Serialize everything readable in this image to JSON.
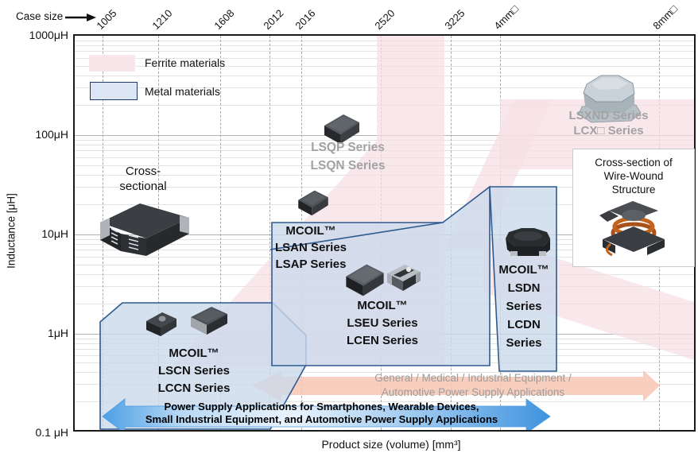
{
  "axes": {
    "case_size_label": "Case size",
    "case_sizes": [
      "1005",
      "1210",
      "1608",
      "2012",
      "2016",
      "2520",
      "3225",
      "4mm□",
      "8mm□"
    ],
    "y_label": "Inductance [μH]",
    "y_ticks": [
      "1000μH",
      "100μH",
      "10μH",
      "1μH",
      "0.1 μH"
    ],
    "x_label": "Product size (volume) [mm³]"
  },
  "legend": {
    "ferrite_label": "Ferrite materials",
    "metal_label": "Metal materials"
  },
  "regions": {
    "lsqp": {
      "line1": "LSQP Series",
      "line2": "LSQN Series"
    },
    "lsxnd": {
      "line1": "LSXND Series",
      "line2": "LCX□ Series"
    },
    "lsan": {
      "brand": "MCOIL™",
      "line1": "LSAN Series",
      "line2": "LSAP Series"
    },
    "lseu": {
      "brand": "MCOIL™",
      "line1": "LSEU Series",
      "line2": "LCEN Series"
    },
    "lsdn": {
      "brand": "MCOIL™",
      "line1": "LSDN",
      "line2": "Series",
      "line3": "LCDN",
      "line4": "Series"
    },
    "lscn": {
      "brand": "MCOIL™",
      "line1": "LSCN Series",
      "line2": "LCCN Series"
    }
  },
  "callouts": {
    "cross_sectional_line1": "Cross-",
    "cross_sectional_line2": "sectional",
    "wirewound_line1": "Cross-section of",
    "wirewound_line2": "Wire-Wound",
    "wirewound_line3": "Structure"
  },
  "arrows": {
    "blue_line1": "Power Supply Applications for Smartphones, Wearable Devices,",
    "blue_line2": "Small Industrial Equipment, and Automotive Power Supply Applications",
    "orange_line1": "General / Medical / Industrial Equipment /",
    "orange_line2": "Automotive Power Supply Applications"
  },
  "colors": {
    "ferrite_fill": "#f5dfe4",
    "metal_fill": "#ccd9ec",
    "metal_border": "#2e5a8e",
    "blue_arrow": "#4d9fe4",
    "orange_arrow": "#f7c5b4",
    "gray_text": "#a2a2a2"
  },
  "chart_data": {
    "type": "area",
    "title": "Inductor lineup map: inductance vs product size / case size",
    "xlabel": "Product size (volume) [mm³]",
    "x_secondary_axis_label": "Case size",
    "x_ticks": [
      "1005",
      "1210",
      "1608",
      "2012",
      "2016",
      "2520",
      "3225",
      "4mm□",
      "8mm□"
    ],
    "ylabel": "Inductance [μH]",
    "y_scale": "log",
    "ylim": [
      0.1,
      1000
    ],
    "y_ticks": [
      "1000μH",
      "100μH",
      "10μH",
      "1μH",
      "0.1 μH"
    ],
    "grid": true,
    "legend_position": "top-left",
    "legend": [
      {
        "label": "Ferrite materials",
        "color": "#f5dfe4"
      },
      {
        "label": "Metal materials",
        "color": "#ccd9ec"
      }
    ],
    "regions": [
      {
        "brand": "MCOIL™",
        "series": [
          "LSCN Series",
          "LCCN Series"
        ],
        "material": "metal",
        "case_size_range": [
          "1005",
          "2012"
        ],
        "inductance_uH_range": [
          0.1,
          1.5
        ]
      },
      {
        "brand": "MCOIL™",
        "series": [
          "LSAN Series",
          "LSAP Series",
          "LSEU Series",
          "LCEN Series"
        ],
        "material": "metal",
        "case_size_range": [
          "2012",
          "3225"
        ],
        "inductance_uH_range": [
          0.5,
          11
        ]
      },
      {
        "brand": "MCOIL™",
        "series": [
          "LSDN Series",
          "LCDN Series"
        ],
        "material": "metal",
        "case_size_range": [
          "3225",
          "4mm□"
        ],
        "inductance_uH_range": [
          0.45,
          30
        ]
      },
      {
        "series": [
          "LSQP Series",
          "LSQN Series"
        ],
        "material": "ferrite",
        "case_size_range": [
          "2016",
          "2520"
        ],
        "inductance_uH_range": [
          90,
          1000
        ]
      },
      {
        "series": [
          "LSXND Series",
          "LCX□ Series"
        ],
        "material": "ferrite",
        "case_size_range": [
          "4mm□",
          "8mm□"
        ],
        "inductance_uH_range": [
          50,
          500
        ]
      }
    ],
    "annotations": [
      "Cross-sectional",
      "Cross-section of Wire-Wound Structure",
      "Power Supply Applications for Smartphones, Wearable Devices, Small Industrial Equipment, and Automotive Power Supply Applications",
      "General / Medical / Industrial Equipment / Automotive Power Supply Applications"
    ]
  }
}
